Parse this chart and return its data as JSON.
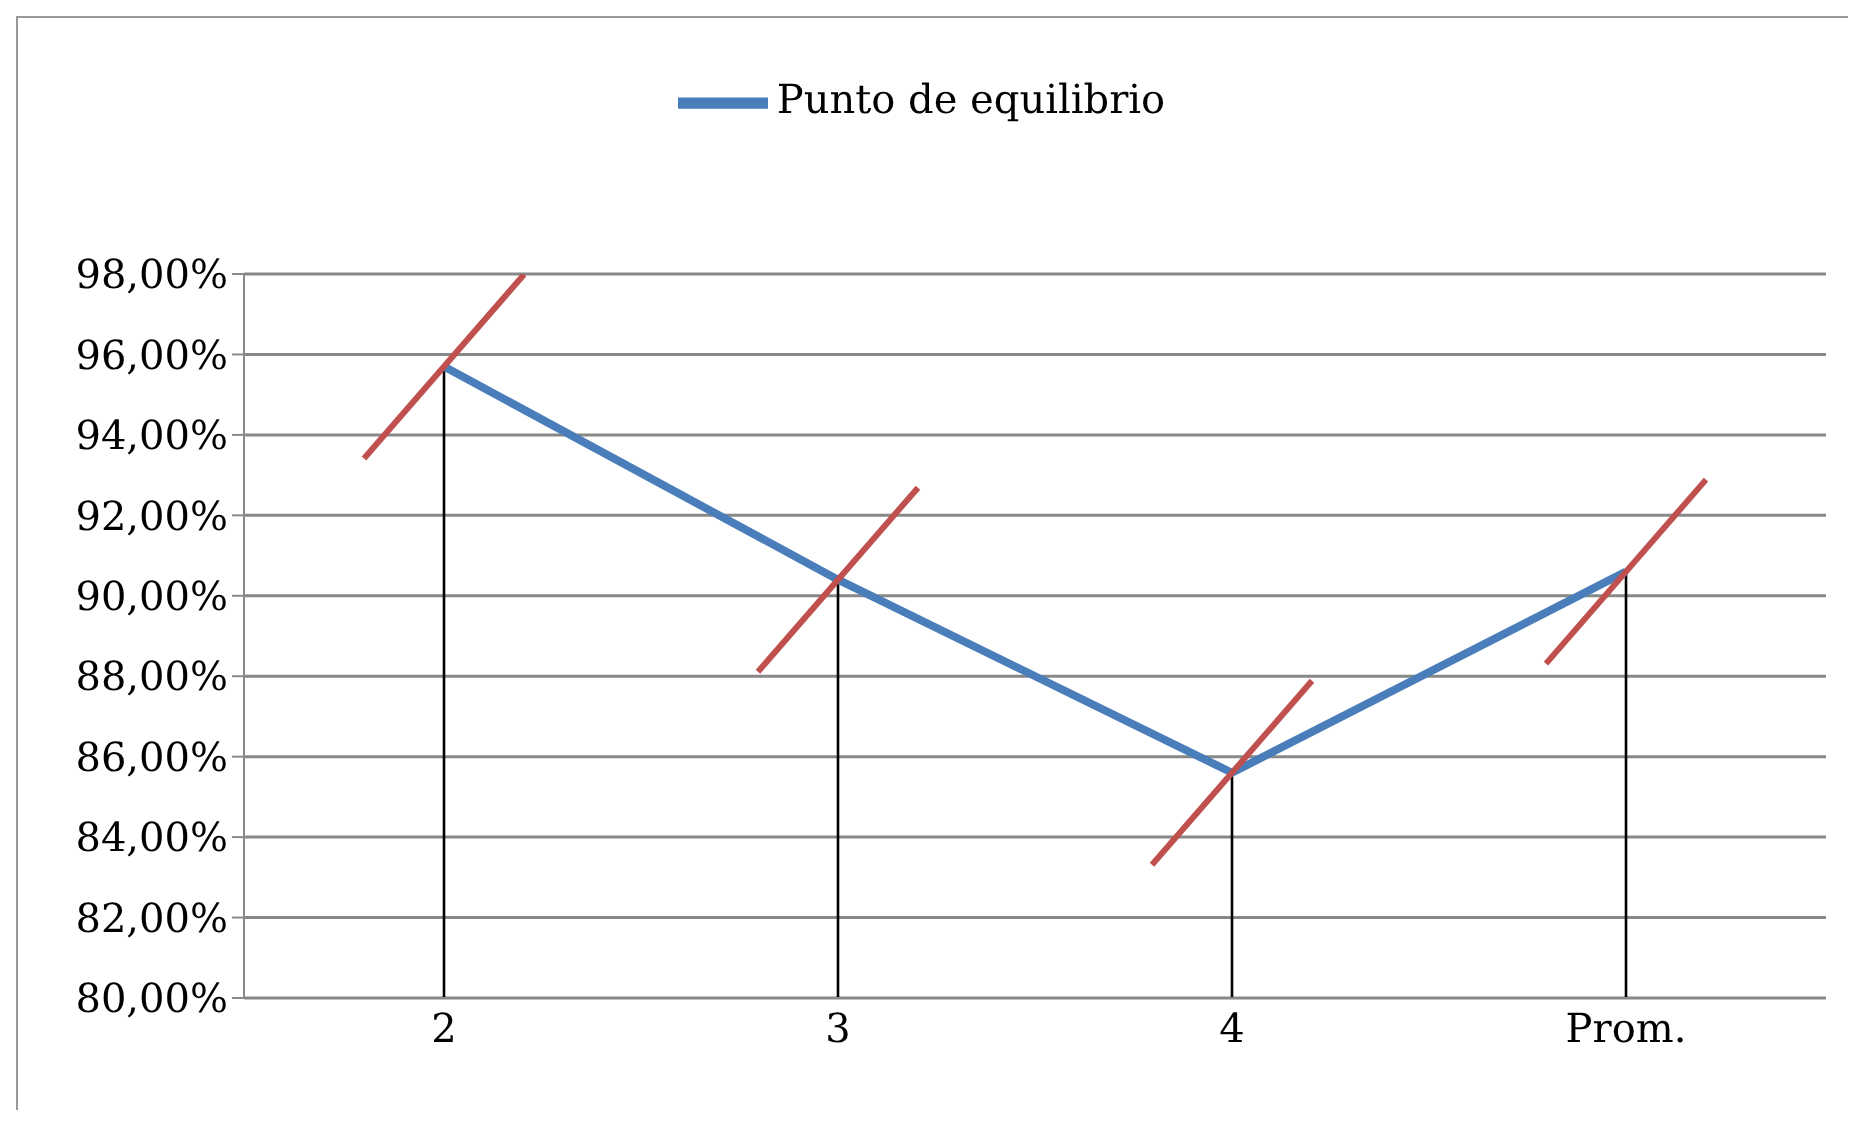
{
  "chart_data": {
    "type": "line",
    "categories": [
      "2",
      "3",
      "4",
      "Prom."
    ],
    "series": [
      {
        "name": "Punto de equilibrio",
        "color": "#4a7ebb",
        "values": [
          95.7,
          90.4,
          85.6,
          90.6
        ],
        "errors": [
          [
            80,
            95.7
          ],
          [
            80,
            90.4
          ],
          [
            80,
            85.6
          ],
          [
            80,
            90.6
          ]
        ]
      }
    ],
    "ylim": [
      80,
      98
    ],
    "yticks": [
      {
        "value": 80,
        "label": "80,00%"
      },
      {
        "value": 82,
        "label": "82,00%"
      },
      {
        "value": 84,
        "label": "84,00%"
      },
      {
        "value": 86,
        "label": "86,00%"
      },
      {
        "value": 88,
        "label": "88,00%"
      },
      {
        "value": 90,
        "label": "90,00%"
      },
      {
        "value": 92,
        "label": "92,00%"
      },
      {
        "value": 94,
        "label": "94,00%"
      },
      {
        "value": 96,
        "label": "96,00%"
      },
      {
        "value": 98,
        "label": "98,00%"
      }
    ],
    "grid": "y",
    "legend": "top",
    "marker": "none",
    "line_style": "solid"
  }
}
